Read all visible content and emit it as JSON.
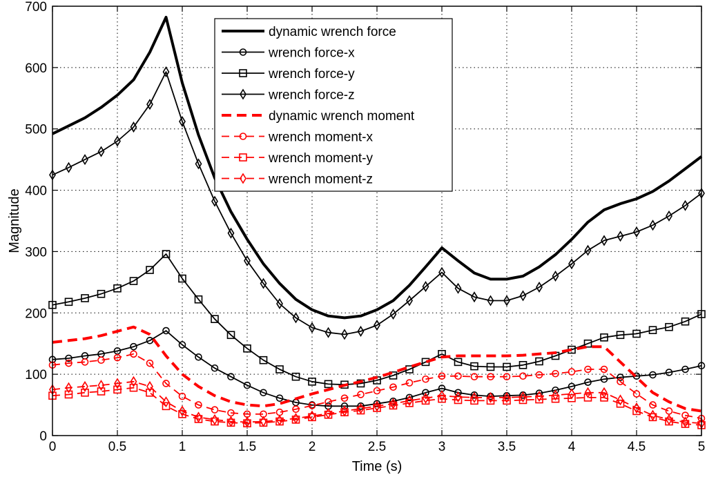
{
  "chart_data": {
    "type": "line",
    "title": "",
    "xlabel": "Time (s)",
    "ylabel": "Magnitude",
    "xlim": [
      0,
      5
    ],
    "ylim": [
      0,
      700
    ],
    "xticks": [
      0,
      0.5,
      1,
      1.5,
      2,
      2.5,
      3,
      3.5,
      4,
      4.5,
      5
    ],
    "yticks": [
      0,
      100,
      200,
      300,
      400,
      500,
      600,
      700
    ],
    "xtick_labels": [
      "0",
      "0.5",
      "1",
      "1.5",
      "2",
      "2.5",
      "3",
      "3.5",
      "4",
      "4.5",
      "5"
    ],
    "ytick_labels": [
      "0",
      "100",
      "200",
      "300",
      "400",
      "500",
      "600",
      "700"
    ],
    "grid": true,
    "legend_position": "top-center",
    "x": [
      0,
      0.125,
      0.25,
      0.375,
      0.5,
      0.625,
      0.75,
      0.875,
      1,
      1.125,
      1.25,
      1.375,
      1.5,
      1.625,
      1.75,
      1.875,
      2,
      2.125,
      2.25,
      2.375,
      2.5,
      2.625,
      2.75,
      2.875,
      3,
      3.125,
      3.25,
      3.375,
      3.5,
      3.625,
      3.75,
      3.875,
      4,
      4.125,
      4.25,
      4.375,
      4.5,
      4.625,
      4.75,
      4.875,
      5
    ],
    "series": [
      {
        "name": "dynamic wrench force",
        "color": "#000000",
        "dash": "solid",
        "marker": "none",
        "width": 4,
        "values": [
          492,
          505,
          518,
          535,
          555,
          580,
          625,
          682,
          575,
          490,
          420,
          365,
          320,
          280,
          248,
          222,
          205,
          195,
          192,
          195,
          205,
          220,
          245,
          275,
          306,
          285,
          265,
          255,
          255,
          260,
          275,
          295,
          320,
          348,
          368,
          378,
          386,
          398,
          415,
          435,
          455
        ]
      },
      {
        "name": "wrench force-x",
        "color": "#000000",
        "dash": "solid",
        "marker": "circle",
        "width": 1.8,
        "values": [
          124,
          126,
          130,
          133,
          138,
          145,
          155,
          171,
          148,
          128,
          110,
          96,
          82,
          70,
          61,
          54,
          50,
          48,
          48,
          48,
          52,
          56,
          62,
          70,
          77,
          70,
          66,
          64,
          65,
          66,
          69,
          74,
          80,
          87,
          92,
          95,
          97,
          99,
          103,
          108,
          114
        ]
      },
      {
        "name": "wrench force-y",
        "color": "#000000",
        "dash": "solid",
        "marker": "square",
        "width": 1.8,
        "values": [
          213,
          218,
          224,
          231,
          240,
          252,
          270,
          296,
          256,
          222,
          190,
          164,
          142,
          123,
          108,
          96,
          88,
          84,
          83,
          85,
          90,
          98,
          108,
          120,
          133,
          120,
          113,
          112,
          112,
          115,
          121,
          130,
          140,
          150,
          160,
          164,
          166,
          172,
          177,
          186,
          198
        ]
      },
      {
        "name": "wrench force-z",
        "color": "#000000",
        "dash": "solid",
        "marker": "diamond",
        "width": 1.8,
        "values": [
          425,
          437,
          450,
          463,
          480,
          503,
          540,
          593,
          512,
          443,
          382,
          330,
          285,
          248,
          215,
          192,
          176,
          168,
          165,
          170,
          180,
          198,
          220,
          243,
          266,
          240,
          226,
          220,
          220,
          228,
          242,
          260,
          280,
          302,
          318,
          325,
          332,
          343,
          358,
          375,
          395
        ]
      },
      {
        "name": "dynamic wrench moment",
        "color": "#ff0000",
        "dash": "dash",
        "marker": "none",
        "width": 4,
        "values": [
          152,
          155,
          158,
          163,
          170,
          177,
          165,
          130,
          100,
          80,
          65,
          55,
          50,
          48,
          52,
          60,
          68,
          75,
          82,
          88,
          95,
          103,
          112,
          120,
          128,
          130,
          130,
          130,
          130,
          131,
          133,
          135,
          140,
          145,
          145,
          120,
          95,
          70,
          55,
          44,
          40
        ]
      },
      {
        "name": "wrench moment-x",
        "color": "#ff0000",
        "dash": "dash",
        "marker": "circle",
        "width": 1.8,
        "values": [
          115,
          118,
          120,
          123,
          127,
          133,
          118,
          85,
          64,
          50,
          42,
          37,
          35,
          35,
          38,
          43,
          49,
          55,
          61,
          67,
          73,
          79,
          86,
          92,
          97,
          97,
          96,
          96,
          96,
          97,
          99,
          101,
          104,
          108,
          108,
          88,
          68,
          50,
          40,
          33,
          28
        ]
      },
      {
        "name": "wrench moment-y",
        "color": "#ff0000",
        "dash": "dash",
        "marker": "square",
        "width": 1.8,
        "values": [
          65,
          67,
          70,
          72,
          75,
          78,
          70,
          48,
          35,
          27,
          23,
          21,
          20,
          21,
          23,
          26,
          30,
          34,
          38,
          41,
          45,
          49,
          53,
          57,
          60,
          58,
          57,
          57,
          57,
          58,
          59,
          60,
          61,
          62,
          62,
          52,
          40,
          30,
          23,
          19,
          17
        ]
      },
      {
        "name": "wrench moment-z",
        "color": "#ff0000",
        "dash": "dash",
        "marker": "diamond",
        "width": 1.8,
        "values": [
          75,
          78,
          80,
          82,
          85,
          88,
          80,
          55,
          40,
          30,
          26,
          23,
          22,
          23,
          25,
          28,
          32,
          36,
          40,
          44,
          48,
          52,
          57,
          61,
          65,
          63,
          62,
          62,
          62,
          63,
          64,
          66,
          68,
          70,
          70,
          58,
          45,
          33,
          26,
          22,
          20
        ]
      }
    ]
  }
}
